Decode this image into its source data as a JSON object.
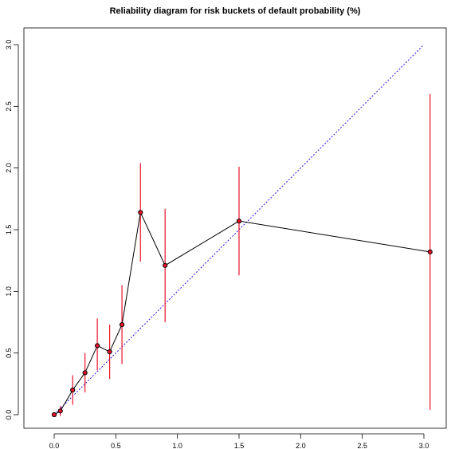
{
  "chart_data": {
    "type": "line",
    "title": "Reliability diagram for risk buckets of default probability (%)",
    "xlabel": "",
    "ylabel": "",
    "xlim": [
      0.0,
      3.1
    ],
    "ylim": [
      0.0,
      3.0
    ],
    "x_ticks": [
      0.0,
      0.5,
      1.0,
      1.5,
      2.0,
      2.5,
      3.0
    ],
    "x_tick_labels": [
      "0.0",
      "0.5",
      "1.0",
      "1.5",
      "2.0",
      "2.5",
      "3.0"
    ],
    "y_ticks": [
      0.0,
      0.5,
      1.0,
      1.5,
      2.0,
      2.5,
      3.0
    ],
    "y_tick_labels": [
      "0.0",
      "0.5",
      "1.0",
      "1.5",
      "2.0",
      "2.5",
      "3.0"
    ],
    "grid": false,
    "series": [
      {
        "type": "line+points",
        "color": "#000000",
        "x": [
          0.0,
          0.05,
          0.15,
          0.25,
          0.35,
          0.45,
          0.55,
          0.7,
          0.9,
          1.5,
          3.05
        ],
        "y": [
          0.0,
          0.03,
          0.2,
          0.34,
          0.56,
          0.51,
          0.73,
          1.64,
          1.21,
          1.57,
          1.32
        ]
      },
      {
        "type": "errorbars",
        "color": "#e8132a",
        "x": [
          0.0,
          0.05,
          0.15,
          0.25,
          0.35,
          0.45,
          0.55,
          0.7,
          0.9,
          1.5,
          3.05
        ],
        "low": [
          0.0,
          -0.01,
          0.08,
          0.18,
          0.36,
          0.29,
          0.41,
          1.24,
          0.75,
          1.13,
          0.04
        ],
        "high": [
          0.0,
          0.07,
          0.32,
          0.5,
          0.78,
          0.73,
          1.05,
          2.04,
          1.67,
          2.01,
          2.6
        ]
      },
      {
        "type": "reference-line",
        "color": "#2a12e8",
        "style": "dotted",
        "x": [
          0.0,
          3.0
        ],
        "y": [
          0.0,
          3.0
        ]
      }
    ],
    "point_fill": "#e8132a",
    "point_stroke": "#000000"
  }
}
